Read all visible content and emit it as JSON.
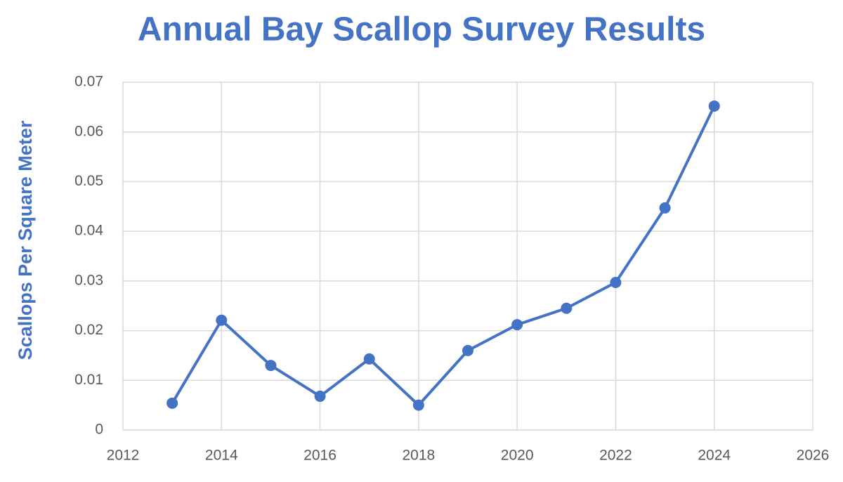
{
  "chart_data": {
    "type": "line",
    "title": "Annual Bay Scallop Survey Results",
    "y_label": "Scallops Per Square Meter",
    "x": [
      2013,
      2014,
      2015,
      2016,
      2017,
      2018,
      2019,
      2020,
      2021,
      2022,
      2023,
      2024
    ],
    "series": [
      {
        "name": "Scallops Per Square Meter",
        "color": "#4472c4",
        "values": [
          0.0054,
          0.0221,
          0.013,
          0.0068,
          0.0143,
          0.005,
          0.016,
          0.0212,
          0.0245,
          0.0297,
          0.0447,
          0.0652
        ]
      }
    ],
    "xlim": [
      2012,
      2026
    ],
    "xticks": [
      2012,
      2014,
      2016,
      2018,
      2020,
      2022,
      2024,
      2026
    ],
    "ylim": [
      0,
      0.07
    ],
    "yticks": [
      0,
      0.01,
      0.02,
      0.03,
      0.04,
      0.05,
      0.06,
      0.07
    ],
    "grid": true
  }
}
